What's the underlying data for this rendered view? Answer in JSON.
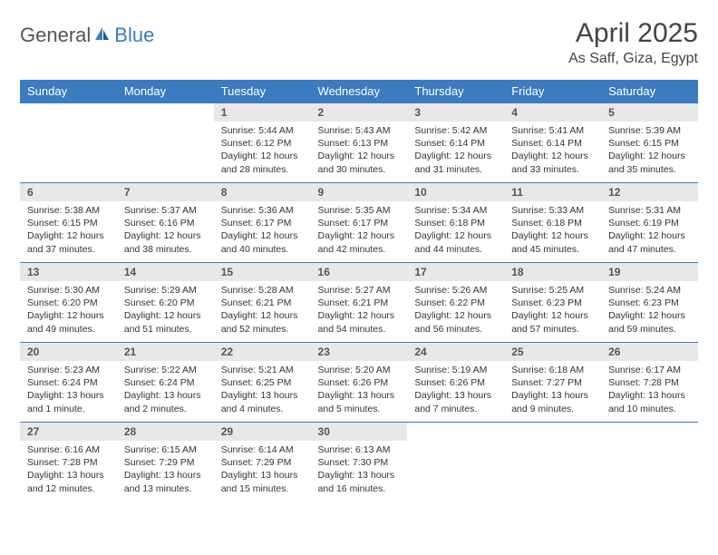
{
  "brand": {
    "part1": "General",
    "part2": "Blue"
  },
  "title": "April 2025",
  "location": "As Saff, Giza, Egypt",
  "colors": {
    "header_bg": "#3b7bbf",
    "header_text": "#ffffff",
    "daynum_bg": "#e8e8e8",
    "daynum_text": "#555555",
    "body_text": "#333333",
    "rule": "#3b7bbf",
    "brand_gray": "#555555",
    "brand_blue": "#3b7bbf"
  },
  "weekdays": [
    "Sunday",
    "Monday",
    "Tuesday",
    "Wednesday",
    "Thursday",
    "Friday",
    "Saturday"
  ],
  "weeks": [
    [
      null,
      null,
      {
        "n": "1",
        "sr": "5:44 AM",
        "ss": "6:12 PM",
        "dl": "12 hours and 28 minutes."
      },
      {
        "n": "2",
        "sr": "5:43 AM",
        "ss": "6:13 PM",
        "dl": "12 hours and 30 minutes."
      },
      {
        "n": "3",
        "sr": "5:42 AM",
        "ss": "6:14 PM",
        "dl": "12 hours and 31 minutes."
      },
      {
        "n": "4",
        "sr": "5:41 AM",
        "ss": "6:14 PM",
        "dl": "12 hours and 33 minutes."
      },
      {
        "n": "5",
        "sr": "5:39 AM",
        "ss": "6:15 PM",
        "dl": "12 hours and 35 minutes."
      }
    ],
    [
      {
        "n": "6",
        "sr": "5:38 AM",
        "ss": "6:15 PM",
        "dl": "12 hours and 37 minutes."
      },
      {
        "n": "7",
        "sr": "5:37 AM",
        "ss": "6:16 PM",
        "dl": "12 hours and 38 minutes."
      },
      {
        "n": "8",
        "sr": "5:36 AM",
        "ss": "6:17 PM",
        "dl": "12 hours and 40 minutes."
      },
      {
        "n": "9",
        "sr": "5:35 AM",
        "ss": "6:17 PM",
        "dl": "12 hours and 42 minutes."
      },
      {
        "n": "10",
        "sr": "5:34 AM",
        "ss": "6:18 PM",
        "dl": "12 hours and 44 minutes."
      },
      {
        "n": "11",
        "sr": "5:33 AM",
        "ss": "6:18 PM",
        "dl": "12 hours and 45 minutes."
      },
      {
        "n": "12",
        "sr": "5:31 AM",
        "ss": "6:19 PM",
        "dl": "12 hours and 47 minutes."
      }
    ],
    [
      {
        "n": "13",
        "sr": "5:30 AM",
        "ss": "6:20 PM",
        "dl": "12 hours and 49 minutes."
      },
      {
        "n": "14",
        "sr": "5:29 AM",
        "ss": "6:20 PM",
        "dl": "12 hours and 51 minutes."
      },
      {
        "n": "15",
        "sr": "5:28 AM",
        "ss": "6:21 PM",
        "dl": "12 hours and 52 minutes."
      },
      {
        "n": "16",
        "sr": "5:27 AM",
        "ss": "6:21 PM",
        "dl": "12 hours and 54 minutes."
      },
      {
        "n": "17",
        "sr": "5:26 AM",
        "ss": "6:22 PM",
        "dl": "12 hours and 56 minutes."
      },
      {
        "n": "18",
        "sr": "5:25 AM",
        "ss": "6:23 PM",
        "dl": "12 hours and 57 minutes."
      },
      {
        "n": "19",
        "sr": "5:24 AM",
        "ss": "6:23 PM",
        "dl": "12 hours and 59 minutes."
      }
    ],
    [
      {
        "n": "20",
        "sr": "5:23 AM",
        "ss": "6:24 PM",
        "dl": "13 hours and 1 minute."
      },
      {
        "n": "21",
        "sr": "5:22 AM",
        "ss": "6:24 PM",
        "dl": "13 hours and 2 minutes."
      },
      {
        "n": "22",
        "sr": "5:21 AM",
        "ss": "6:25 PM",
        "dl": "13 hours and 4 minutes."
      },
      {
        "n": "23",
        "sr": "5:20 AM",
        "ss": "6:26 PM",
        "dl": "13 hours and 5 minutes."
      },
      {
        "n": "24",
        "sr": "5:19 AM",
        "ss": "6:26 PM",
        "dl": "13 hours and 7 minutes."
      },
      {
        "n": "25",
        "sr": "6:18 AM",
        "ss": "7:27 PM",
        "dl": "13 hours and 9 minutes."
      },
      {
        "n": "26",
        "sr": "6:17 AM",
        "ss": "7:28 PM",
        "dl": "13 hours and 10 minutes."
      }
    ],
    [
      {
        "n": "27",
        "sr": "6:16 AM",
        "ss": "7:28 PM",
        "dl": "13 hours and 12 minutes."
      },
      {
        "n": "28",
        "sr": "6:15 AM",
        "ss": "7:29 PM",
        "dl": "13 hours and 13 minutes."
      },
      {
        "n": "29",
        "sr": "6:14 AM",
        "ss": "7:29 PM",
        "dl": "13 hours and 15 minutes."
      },
      {
        "n": "30",
        "sr": "6:13 AM",
        "ss": "7:30 PM",
        "dl": "13 hours and 16 minutes."
      },
      null,
      null,
      null
    ]
  ],
  "labels": {
    "sunrise": "Sunrise:",
    "sunset": "Sunset:",
    "daylight": "Daylight:"
  }
}
